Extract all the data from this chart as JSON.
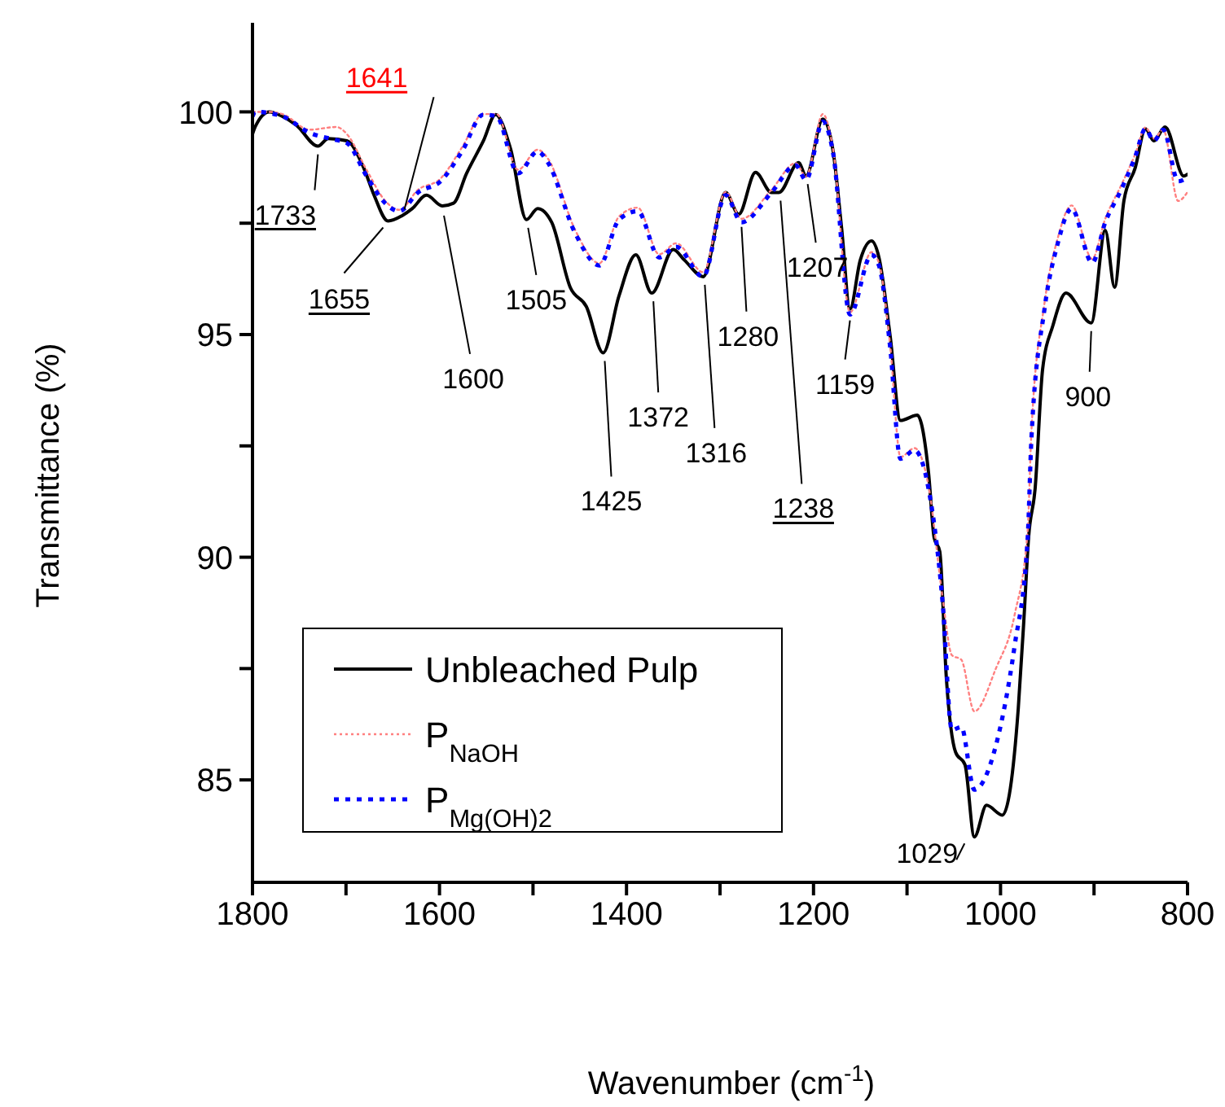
{
  "chart_data": {
    "type": "line",
    "xlabel": "Wavenumber (cm$^{-1}$)",
    "ylabel": "Transmittance (%)",
    "xlim": [
      1800,
      800
    ],
    "xticks": [
      1800,
      {
        "value": 1700,
        "label": null
      },
      1600,
      {
        "value": 1500,
        "label": null
      },
      1400,
      {
        "value": 1300,
        "label": null
      },
      1200,
      {
        "value": 1100,
        "label": null
      },
      1000,
      {
        "value": 900,
        "label": null
      },
      800
    ],
    "ylim": [
      82.7,
      102
    ],
    "yticks": [
      85,
      {
        "value": 87.5,
        "label": null
      },
      90,
      {
        "value": 92.5,
        "label": null
      },
      95,
      {
        "value": 97.5,
        "label": null
      },
      100
    ],
    "legend": "bottom left",
    "marker": "none",
    "series": [
      {
        "name": "Unbleached Pulp",
        "color": "#000000",
        "line_style": "solid",
        "x": [
          1800,
          1797,
          1782,
          1768,
          1753,
          1730,
          1719,
          1699,
          1681,
          1670,
          1655,
          1640,
          1629,
          1614,
          1597,
          1585,
          1571,
          1553,
          1540,
          1524,
          1507,
          1495,
          1480,
          1460,
          1443,
          1425,
          1408,
          1390,
          1373,
          1350,
          1338,
          1318,
          1294,
          1280,
          1262,
          1245,
          1237,
          1216,
          1208,
          1190,
          1179,
          1170,
          1161,
          1150,
          1138,
          1130,
          1118,
          1107,
          1089,
          1077,
          1071,
          1065,
          1058,
          1048,
          1038,
          1028,
          1015,
          998,
          981,
          975,
          970,
          963,
          955,
          944,
          930,
          903,
          888,
          878,
          868,
          856,
          845,
          836,
          824,
          804,
          800
        ],
        "values": [
          99.5,
          99.67,
          100,
          99.9,
          99.7,
          99.23,
          99.4,
          99.35,
          98.74,
          98.13,
          97.55,
          97.67,
          97.83,
          98.13,
          97.89,
          97.95,
          98.62,
          99.35,
          99.94,
          99.17,
          97.58,
          97.83,
          97.52,
          96.05,
          95.63,
          94.59,
          95.87,
          96.79,
          95.93,
          96.91,
          96.67,
          96.3,
          98.19,
          97.7,
          98.64,
          98.19,
          98.19,
          98.86,
          98.56,
          99.84,
          99.11,
          97.4,
          95.57,
          96.67,
          97.1,
          96.73,
          94.96,
          93.07,
          93.19,
          91.9,
          90.44,
          90.13,
          87.31,
          85.62,
          85.34,
          83.72,
          84.43,
          84.21,
          86.61,
          88.6,
          90.44,
          91.54,
          94.22,
          95.2,
          95.93,
          95.26,
          97.34,
          96.06,
          98.01,
          98.74,
          99.62,
          99.35,
          99.66,
          98.56,
          98.6
        ]
      },
      {
        "name": "P$_{NaOH}$",
        "color": "#ff8080",
        "line_style": "dotted",
        "x": [
          1800,
          1782,
          1768,
          1739,
          1710,
          1699,
          1678,
          1658,
          1643,
          1623,
          1599,
          1576,
          1553,
          1539,
          1516,
          1495,
          1484,
          1455,
          1429,
          1408,
          1388,
          1365,
          1347,
          1318,
          1294,
          1277,
          1245,
          1219,
          1208,
          1190,
          1179,
          1161,
          1138,
          1130,
          1118,
          1107,
          1092,
          1077,
          1062,
          1052,
          1042,
          1028,
          1005,
          985,
          971,
          967,
          953,
          939,
          924,
          902,
          888,
          871,
          856,
          845,
          836,
          826,
          810,
          800
        ],
        "values": [
          100,
          100,
          99.95,
          99.6,
          99.66,
          99.5,
          98.7,
          98.0,
          97.8,
          98.25,
          98.5,
          99.2,
          99.95,
          99.95,
          98.7,
          99.15,
          98.95,
          97.35,
          96.6,
          97.65,
          97.85,
          96.8,
          97.05,
          96.4,
          98.2,
          97.6,
          98.25,
          98.85,
          98.55,
          99.95,
          99.15,
          95.5,
          96.85,
          96.6,
          94.75,
          92.25,
          92.45,
          91.6,
          89.1,
          87.8,
          87.7,
          86.54,
          87.5,
          88.7,
          90.6,
          92.8,
          95.7,
          97.15,
          97.9,
          96.7,
          97.6,
          98.35,
          99.05,
          99.65,
          99.4,
          99.6,
          98.0,
          98.2
        ]
      },
      {
        "name": "P$_{Mg(OH)2}$",
        "color": "#0000ff",
        "line_style": "dashed",
        "x": [
          1800,
          1797,
          1768,
          1739,
          1713,
          1699,
          1678,
          1658,
          1643,
          1623,
          1599,
          1576,
          1553,
          1539,
          1516,
          1495,
          1484,
          1455,
          1429,
          1408,
          1388,
          1365,
          1347,
          1318,
          1294,
          1277,
          1245,
          1219,
          1208,
          1190,
          1179,
          1161,
          1138,
          1130,
          1118,
          1107,
          1092,
          1077,
          1062,
          1052,
          1042,
          1028,
          1005,
          985,
          971,
          967,
          953,
          939,
          924,
          902,
          888,
          871,
          856,
          845,
          836,
          826,
          810,
          802
        ],
        "values": [
          99.9,
          100,
          99.9,
          99.53,
          99.38,
          99.3,
          98.56,
          97.95,
          97.77,
          98.19,
          98.44,
          99.11,
          99.94,
          99.9,
          98.62,
          99.11,
          98.86,
          97.28,
          96.55,
          97.58,
          97.77,
          96.73,
          96.97,
          96.3,
          98.13,
          97.52,
          98.19,
          98.8,
          98.47,
          99.78,
          99.07,
          95.45,
          96.79,
          96.55,
          94.71,
          92.21,
          92.4,
          91.54,
          89.0,
          86.12,
          86.19,
          84.78,
          85.77,
          88.0,
          90.41,
          92.64,
          95.57,
          97.03,
          97.83,
          96.61,
          97.52,
          98.25,
          98.99,
          99.62,
          99.35,
          99.6,
          98.44,
          98.5
        ]
      }
    ],
    "annotations": [
      {
        "text": "1733",
        "x": 1730,
        "y": 99.23
      },
      {
        "text": "1641",
        "x": 1641,
        "y": 97.7
      },
      {
        "text": "1655",
        "x": 1655,
        "y": 97.55
      },
      {
        "text": "1600",
        "x": 1597,
        "y": 97.89
      },
      {
        "text": "1505",
        "x": 1507,
        "y": 97.58
      },
      {
        "text": "1425",
        "x": 1425,
        "y": 94.59
      },
      {
        "text": "1372",
        "x": 1373,
        "y": 95.93
      },
      {
        "text": "1316",
        "x": 1318,
        "y": 96.3
      },
      {
        "text": "1280",
        "x": 1277,
        "y": 97.6
      },
      {
        "text": "1238",
        "x": 1237,
        "y": 98.19
      },
      {
        "text": "1207",
        "x": 1208,
        "y": 98.56
      },
      {
        "text": "1159",
        "x": 1161,
        "y": 95.5
      },
      {
        "text": "1029",
        "x": 1028,
        "y": 83.72
      },
      {
        "text": "900",
        "x": 903,
        "y": 95.26
      }
    ]
  }
}
